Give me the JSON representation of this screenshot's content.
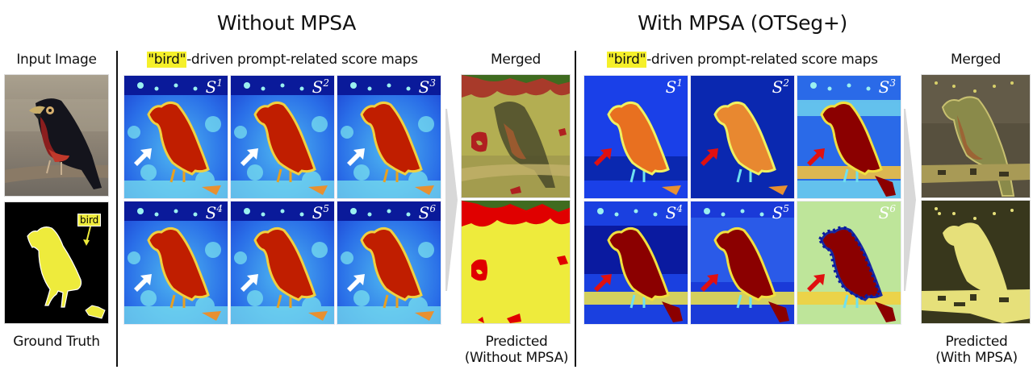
{
  "headers": {
    "without": "Without MPSA",
    "with": "With MPSA (OTSeg+)"
  },
  "left_column": {
    "input_label": "Input Image",
    "gt_label": "Ground Truth",
    "gt_tag": "bird",
    "input_description": "Photo of a barbet bird with black plumage and red chest perched on a branch",
    "gt_description": "Yellow bird silhouette segmentation mask on black background"
  },
  "without_mpsa": {
    "subtitle_highlight": "\"bird\"",
    "subtitle_rest": "-driven prompt-related score maps",
    "maps": [
      {
        "label": "S",
        "sup": "1"
      },
      {
        "label": "S",
        "sup": "2"
      },
      {
        "label": "S",
        "sup": "3"
      },
      {
        "label": "S",
        "sup": "4"
      },
      {
        "label": "S",
        "sup": "5"
      },
      {
        "label": "S",
        "sup": "6"
      }
    ],
    "pointer_color": "#ffffff",
    "merged_label": "Merged",
    "predicted_label_1": "Predicted",
    "predicted_label_2": "(Without MPSA)"
  },
  "with_mpsa": {
    "subtitle_highlight": "\"bird\"",
    "subtitle_rest": "-driven prompt-related score maps",
    "maps": [
      {
        "label": "S",
        "sup": "1"
      },
      {
        "label": "S",
        "sup": "2"
      },
      {
        "label": "S",
        "sup": "3"
      },
      {
        "label": "S",
        "sup": "4"
      },
      {
        "label": "S",
        "sup": "5"
      },
      {
        "label": "S",
        "sup": "6"
      }
    ],
    "pointer_color": "#e01010",
    "merged_label": "Merged",
    "predicted_label_1": "Predicted",
    "predicted_label_2": "(With MPSA)"
  },
  "colors": {
    "highlight": "#f5f02a",
    "jet_dark_blue": "#00008b",
    "jet_blue": "#1030e0",
    "jet_cyan": "#6fe6f0",
    "jet_yellow": "#f0f040",
    "jet_red": "#c81e00",
    "jet_dark_red": "#8b0000",
    "mask_yellow": "#eeeb3c",
    "mask_red": "#e00000",
    "mask_green": "#3f6b1f",
    "mask_dark_olive": "#38371c",
    "mask_light_yellow": "#e6e07a"
  }
}
